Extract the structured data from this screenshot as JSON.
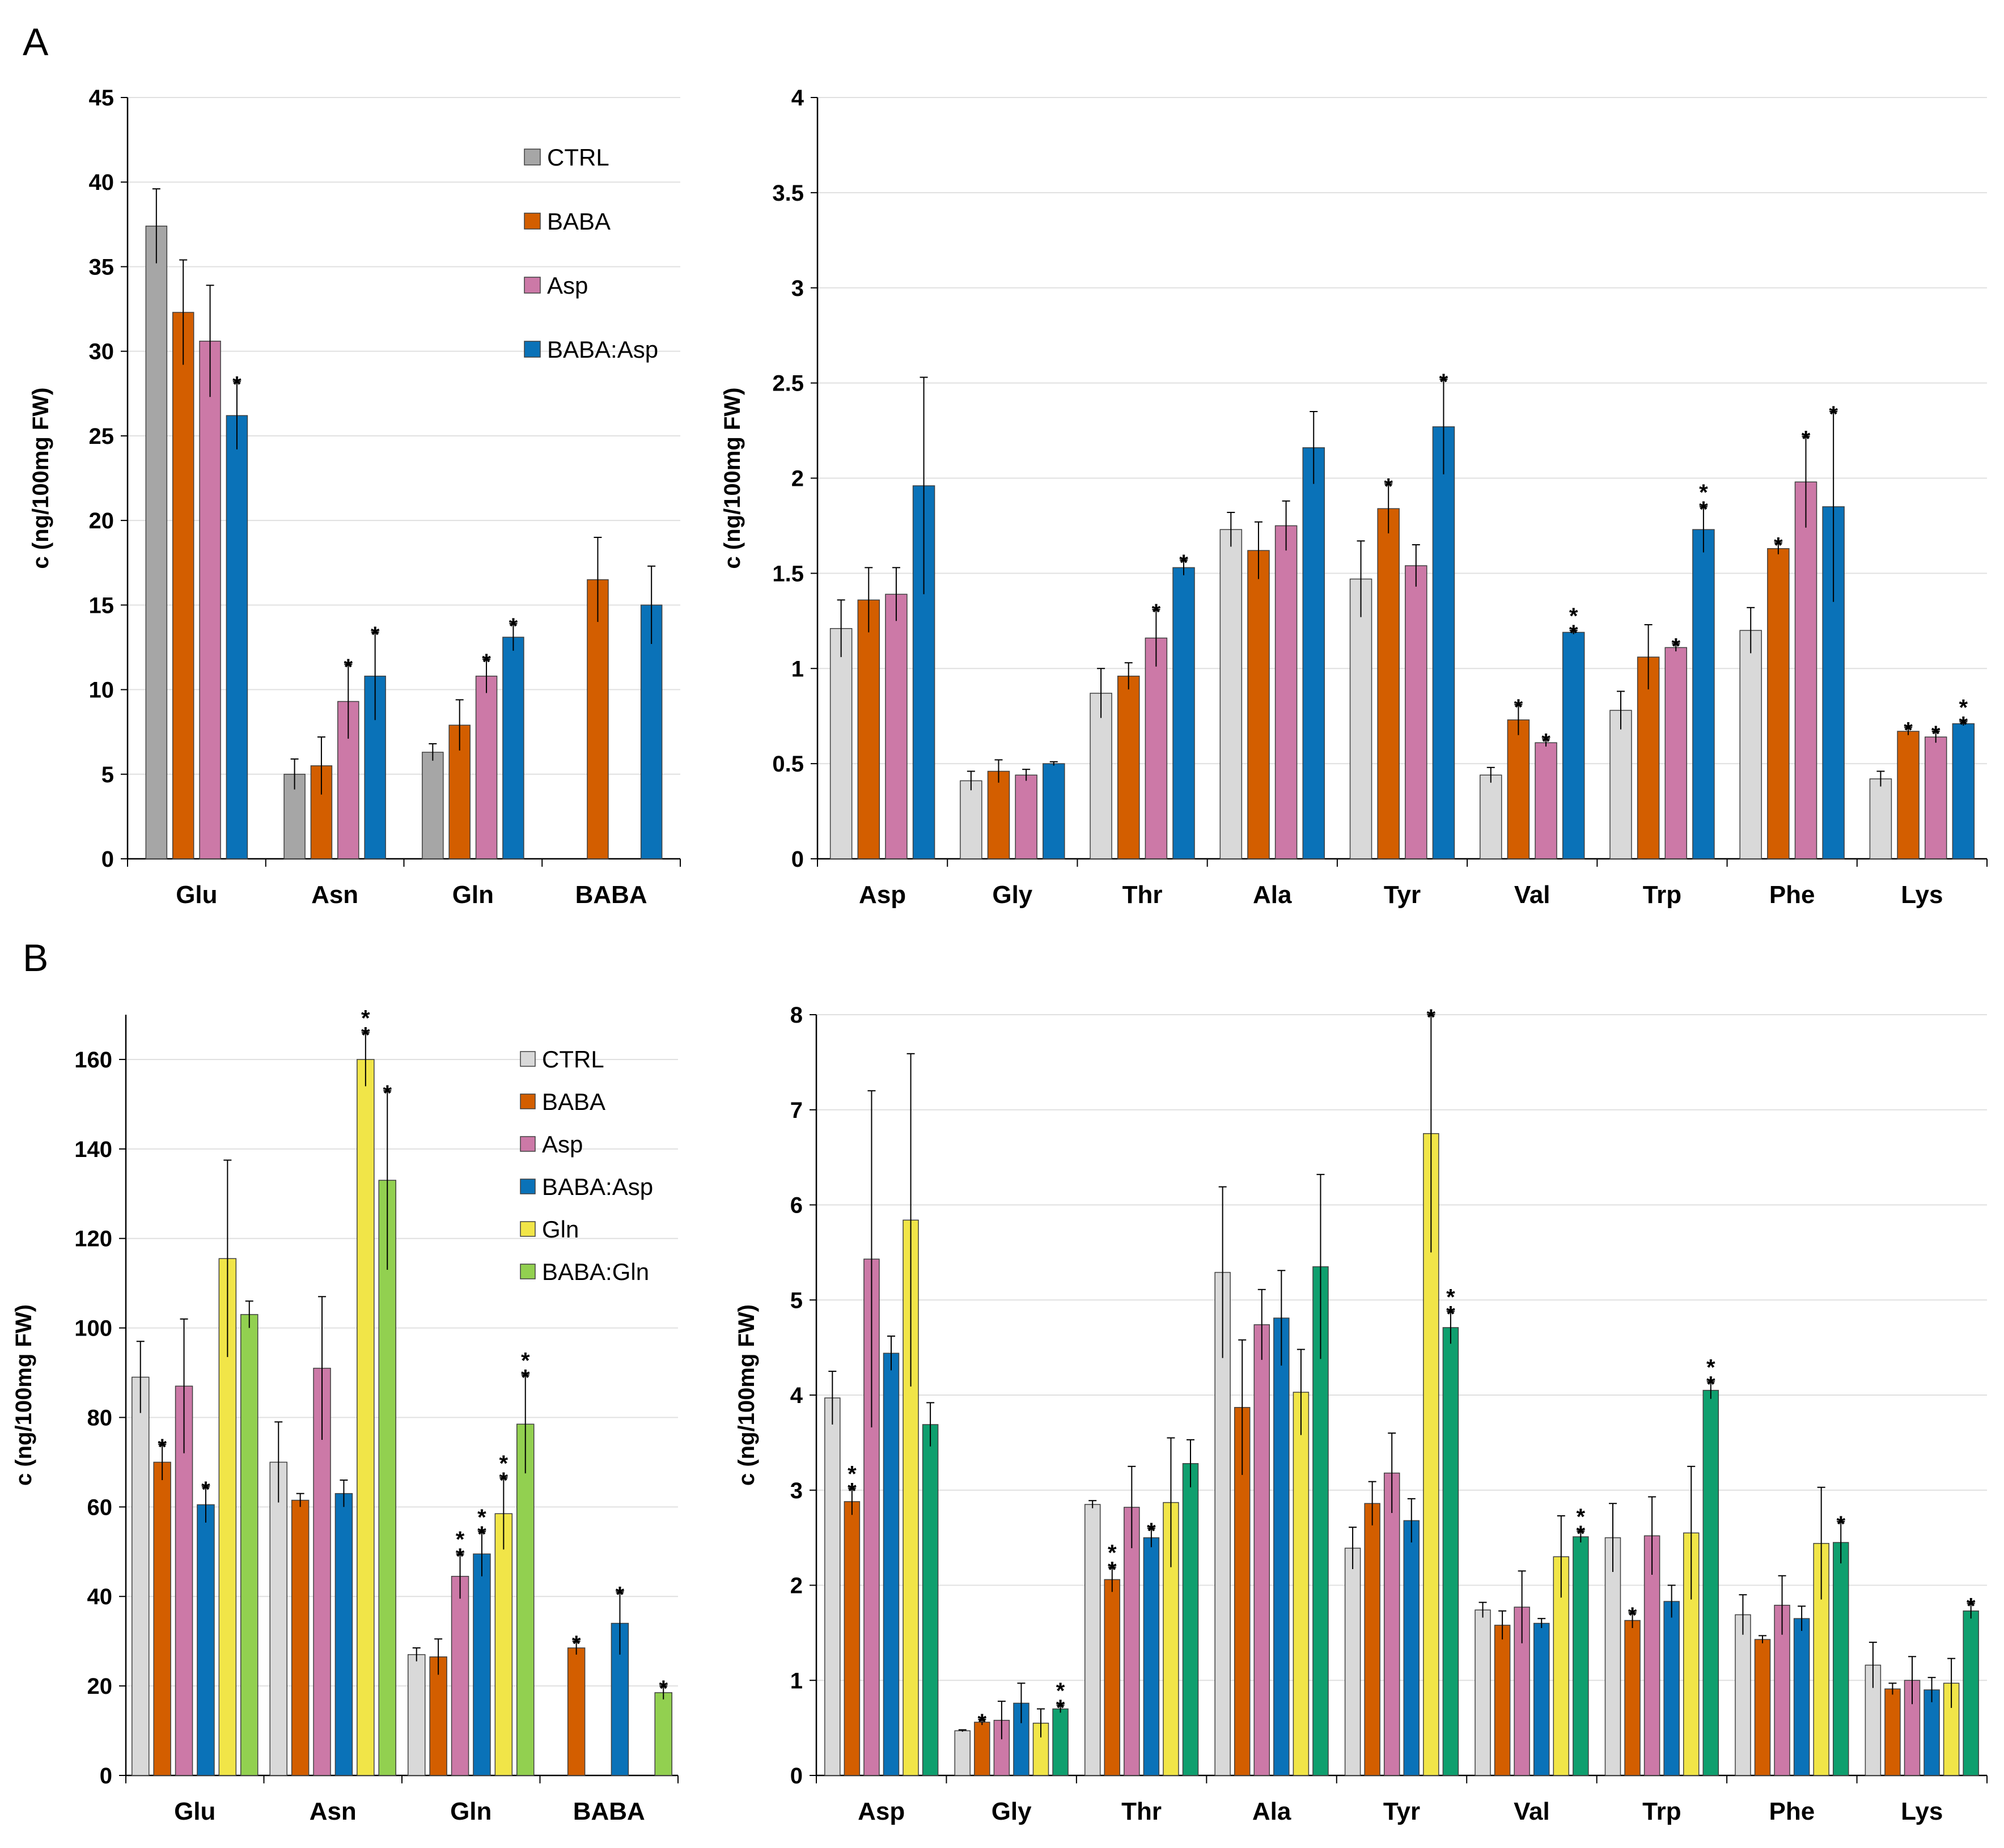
{
  "figure": {
    "panel_labels": [
      "A",
      "B"
    ]
  },
  "chart_data": [
    {
      "id": "A-left",
      "type": "bar",
      "ylabel": "c (ng/100mg FW)",
      "ylim": [
        0,
        45
      ],
      "yticks": [
        0,
        5,
        10,
        15,
        20,
        25,
        30,
        35,
        40,
        45
      ],
      "categories": [
        "Glu",
        "Asn",
        "Gln",
        "BABA"
      ],
      "legend": "top-right",
      "series": [
        {
          "name": "CTRL",
          "color": "#a6a6a6",
          "values": [
            37.4,
            5.0,
            6.3,
            null
          ],
          "errors": [
            2.2,
            0.9,
            0.5,
            null
          ],
          "stars": [
            0,
            0,
            0,
            0
          ]
        },
        {
          "name": "BABA",
          "color": "#d35e00",
          "values": [
            32.3,
            5.5,
            7.9,
            16.5
          ],
          "errors": [
            3.1,
            1.7,
            1.5,
            2.5
          ],
          "stars": [
            0,
            0,
            0,
            0
          ]
        },
        {
          "name": "Asp",
          "color": "#cc79a7",
          "values": [
            30.6,
            9.3,
            10.8,
            null
          ],
          "errors": [
            3.3,
            2.2,
            1.0,
            null
          ],
          "stars": [
            0,
            1,
            1,
            0
          ]
        },
        {
          "name": "BABA:Asp",
          "color": "#0a72b8",
          "values": [
            26.2,
            10.8,
            13.1,
            15.0
          ],
          "errors": [
            2.0,
            2.6,
            0.8,
            2.3
          ],
          "stars": [
            1,
            1,
            1,
            0
          ]
        }
      ]
    },
    {
      "id": "A-right",
      "type": "bar",
      "ylabel": "c (ng/100mg FW)",
      "ylim": [
        0,
        4
      ],
      "yticks": [
        "0",
        "0.5",
        "1",
        "1.5",
        "2",
        "2.5",
        "3",
        "3.5",
        "4"
      ],
      "categories": [
        "Asp",
        "Gly",
        "Thr",
        "Ala",
        "Tyr",
        "Val",
        "Trp",
        "Phe",
        "Lys"
      ],
      "series": [
        {
          "name": "CTRL",
          "color": "#d9d9d9",
          "values": [
            1.21,
            0.41,
            0.87,
            1.73,
            1.47,
            0.44,
            0.78,
            1.2,
            0.42
          ],
          "errors": [
            0.15,
            0.05,
            0.13,
            0.09,
            0.2,
            0.04,
            0.1,
            0.12,
            0.04
          ],
          "stars": [
            0,
            0,
            0,
            0,
            0,
            0,
            0,
            0,
            0
          ]
        },
        {
          "name": "BABA",
          "color": "#d35e00",
          "values": [
            1.36,
            0.46,
            0.96,
            1.62,
            1.84,
            0.73,
            1.06,
            1.63,
            0.67
          ],
          "errors": [
            0.17,
            0.06,
            0.07,
            0.15,
            0.13,
            0.08,
            0.17,
            0.03,
            0.02
          ],
          "stars": [
            0,
            0,
            0,
            0,
            1,
            1,
            0,
            1,
            1
          ]
        },
        {
          "name": "Asp",
          "color": "#cc79a7",
          "values": [
            1.39,
            0.44,
            1.16,
            1.75,
            1.54,
            0.61,
            1.11,
            1.98,
            0.64
          ],
          "errors": [
            0.14,
            0.03,
            0.15,
            0.13,
            0.11,
            0.02,
            0.02,
            0.24,
            0.03
          ],
          "stars": [
            0,
            0,
            1,
            0,
            0,
            1,
            1,
            1,
            1
          ]
        },
        {
          "name": "BABA:Asp",
          "color": "#0a72b8",
          "values": [
            1.96,
            0.5,
            1.53,
            2.16,
            2.27,
            1.19,
            1.73,
            1.85,
            0.71
          ],
          "errors": [
            0.57,
            0.01,
            0.04,
            0.19,
            0.25,
            0.01,
            0.12,
            0.5,
            0.01
          ],
          "stars": [
            0,
            0,
            1,
            0,
            1,
            2,
            2,
            1,
            2
          ]
        }
      ]
    },
    {
      "id": "B-left",
      "type": "bar",
      "ylabel": "c (ng/100mg FW)",
      "ylim": [
        0,
        170
      ],
      "yticks": [
        0,
        20,
        40,
        60,
        80,
        100,
        120,
        140,
        160
      ],
      "categories": [
        "Glu",
        "Asn",
        "Gln",
        "BABA"
      ],
      "legend": "top-right",
      "series": [
        {
          "name": "CTRL",
          "color": "#d9d9d9",
          "values": [
            89,
            70,
            27,
            null
          ],
          "errors": [
            8,
            9,
            1.5,
            null
          ],
          "stars": [
            0,
            0,
            0,
            0
          ]
        },
        {
          "name": "BABA",
          "color": "#d35e00",
          "values": [
            70,
            61.5,
            26.5,
            28.5
          ],
          "errors": [
            4,
            1.5,
            4,
            1.5
          ],
          "stars": [
            1,
            0,
            0,
            1
          ]
        },
        {
          "name": "Asp",
          "color": "#cc79a7",
          "values": [
            87,
            91,
            44.5,
            null
          ],
          "errors": [
            15,
            16,
            5,
            null
          ],
          "stars": [
            0,
            0,
            2,
            0
          ]
        },
        {
          "name": "BABA:Asp",
          "color": "#0a72b8",
          "values": [
            60.5,
            63,
            49.5,
            34
          ],
          "errors": [
            4,
            3,
            5,
            7
          ],
          "stars": [
            1,
            0,
            2,
            1
          ]
        },
        {
          "name": "Gln",
          "color": "#f1e548",
          "values": [
            115.5,
            160,
            58.5,
            null
          ],
          "errors": [
            22,
            6,
            8,
            null
          ],
          "stars": [
            0,
            2,
            2,
            0
          ]
        },
        {
          "name": "BABA:Gln",
          "color": "#92d050",
          "values": [
            103,
            133,
            78.5,
            18.5
          ],
          "errors": [
            3,
            20,
            11,
            1.5
          ],
          "stars": [
            0,
            1,
            2,
            1
          ]
        }
      ]
    },
    {
      "id": "B-right",
      "type": "bar",
      "ylabel": "c (ng/100mg FW)",
      "ylim": [
        0,
        8
      ],
      "yticks": [
        0,
        1,
        2,
        3,
        4,
        5,
        6,
        7,
        8
      ],
      "categories": [
        "Asp",
        "Gly",
        "Thr",
        "Ala",
        "Tyr",
        "Val",
        "Trp",
        "Phe",
        "Lys"
      ],
      "series": [
        {
          "name": "CTRL",
          "color": "#d9d9d9",
          "values": [
            3.97,
            0.47,
            2.85,
            5.29,
            2.39,
            1.74,
            2.5,
            1.69,
            1.16
          ],
          "errors": [
            0.28,
            0.01,
            0.04,
            0.9,
            0.22,
            0.08,
            0.36,
            0.21,
            0.24
          ],
          "stars": [
            0,
            0,
            0,
            0,
            0,
            0,
            0,
            0,
            0
          ]
        },
        {
          "name": "BABA",
          "color": "#d35e00",
          "values": [
            2.88,
            0.56,
            2.06,
            3.87,
            2.86,
            1.58,
            1.63,
            1.43,
            0.91
          ],
          "errors": [
            0.14,
            0.03,
            0.13,
            0.71,
            0.23,
            0.15,
            0.08,
            0.04,
            0.06
          ],
          "stars": [
            2,
            1,
            2,
            0,
            0,
            0,
            1,
            0,
            0
          ]
        },
        {
          "name": "Asp",
          "color": "#cc79a7",
          "values": [
            5.43,
            0.58,
            2.82,
            4.74,
            3.18,
            1.77,
            2.52,
            1.79,
            1.0
          ],
          "errors": [
            1.77,
            0.2,
            0.43,
            0.37,
            0.42,
            0.38,
            0.41,
            0.31,
            0.25
          ],
          "stars": [
            0,
            0,
            0,
            0,
            0,
            0,
            0,
            0,
            0
          ]
        },
        {
          "name": "BABA:Asp",
          "color": "#0a72b8",
          "values": [
            4.44,
            0.76,
            2.5,
            4.81,
            2.68,
            1.6,
            1.83,
            1.65,
            0.9
          ],
          "errors": [
            0.18,
            0.21,
            0.1,
            0.5,
            0.23,
            0.05,
            0.17,
            0.13,
            0.13
          ],
          "stars": [
            0,
            0,
            1,
            0,
            0,
            0,
            0,
            0,
            0
          ]
        },
        {
          "name": "Gln",
          "color": "#f1e548",
          "values": [
            5.84,
            0.55,
            2.87,
            4.03,
            6.75,
            2.3,
            2.55,
            2.44,
            0.97
          ],
          "errors": [
            1.75,
            0.15,
            0.68,
            0.45,
            1.25,
            0.43,
            0.7,
            0.59,
            0.26
          ],
          "stars": [
            0,
            0,
            0,
            0,
            1,
            0,
            0,
            0,
            0
          ]
        },
        {
          "name": "BABA:Gln",
          "color": "#0f9f6e",
          "values": [
            3.69,
            0.7,
            3.28,
            5.35,
            4.71,
            2.51,
            4.05,
            2.45,
            1.73
          ],
          "errors": [
            0.23,
            0.04,
            0.25,
            0.97,
            0.17,
            0.06,
            0.09,
            0.22,
            0.08
          ],
          "stars": [
            0,
            2,
            0,
            0,
            2,
            2,
            2,
            1,
            1
          ]
        }
      ]
    }
  ]
}
